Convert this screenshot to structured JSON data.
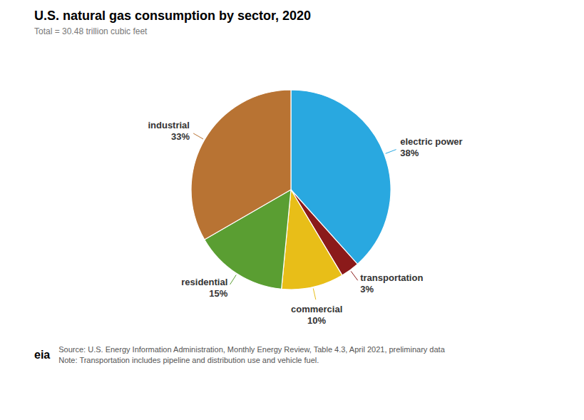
{
  "chart_data": {
    "type": "pie",
    "title": "U.S. natural gas consumption by sector, 2020",
    "subtitle": "Total = 30.48 trillion cubic feet",
    "categories": [
      "electric power",
      "transportation",
      "commercial",
      "residential",
      "industrial"
    ],
    "values": [
      38,
      3,
      10,
      15,
      33
    ],
    "value_labels": [
      "38%",
      "3%",
      "10%",
      "15%",
      "33%"
    ],
    "colors": [
      "#29a8e0",
      "#8b1a1a",
      "#e8be18",
      "#5a9e32",
      "#b87333"
    ],
    "data_labels": true,
    "annotations": [
      "Source: U.S. Energy Information Administration, Monthly Energy Review, Table 4.3, April 2021, preliminary data",
      "Note: Transportation includes pipeline and distribution use and vehicle fuel.",
      "eia"
    ]
  }
}
